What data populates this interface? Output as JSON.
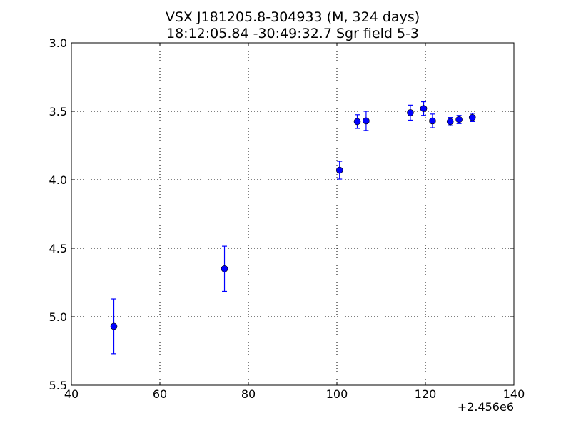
{
  "chart_data": {
    "type": "scatter",
    "title_line1": "VSX J181205.8-304933  (M, 324 days)",
    "title_line2": "18:12:05.84 -30:49:32.7 Sgr field 5-3",
    "xlabel": "",
    "ylabel": "",
    "x_offset_label": "+2.456e6",
    "xlim": [
      40,
      140
    ],
    "ylim": [
      3.0,
      5.5
    ],
    "y_inverted": true,
    "grid": true,
    "x_ticks": [
      40,
      60,
      80,
      100,
      120,
      140
    ],
    "x_tick_labels": [
      "40",
      "60",
      "80",
      "100",
      "120",
      "140"
    ],
    "y_ticks": [
      3.0,
      3.5,
      4.0,
      4.5,
      5.0,
      5.5
    ],
    "y_tick_labels": [
      "3.0",
      "3.5",
      "4.0",
      "4.5",
      "5.0",
      "5.5"
    ],
    "color": "#0000ff",
    "series": [
      {
        "points": [
          {
            "x": 49.6,
            "y": 5.07,
            "err": 0.2
          },
          {
            "x": 74.6,
            "y": 4.65,
            "err": 0.165
          },
          {
            "x": 100.6,
            "y": 3.93,
            "err": 0.065
          },
          {
            "x": 104.6,
            "y": 3.575,
            "err": 0.05
          },
          {
            "x": 106.6,
            "y": 3.57,
            "err": 0.07
          },
          {
            "x": 116.6,
            "y": 3.51,
            "err": 0.055
          },
          {
            "x": 119.6,
            "y": 3.48,
            "err": 0.05
          },
          {
            "x": 121.6,
            "y": 3.57,
            "err": 0.05
          },
          {
            "x": 125.6,
            "y": 3.575,
            "err": 0.03
          },
          {
            "x": 127.6,
            "y": 3.56,
            "err": 0.03
          },
          {
            "x": 130.6,
            "y": 3.545,
            "err": 0.03
          }
        ]
      }
    ]
  }
}
